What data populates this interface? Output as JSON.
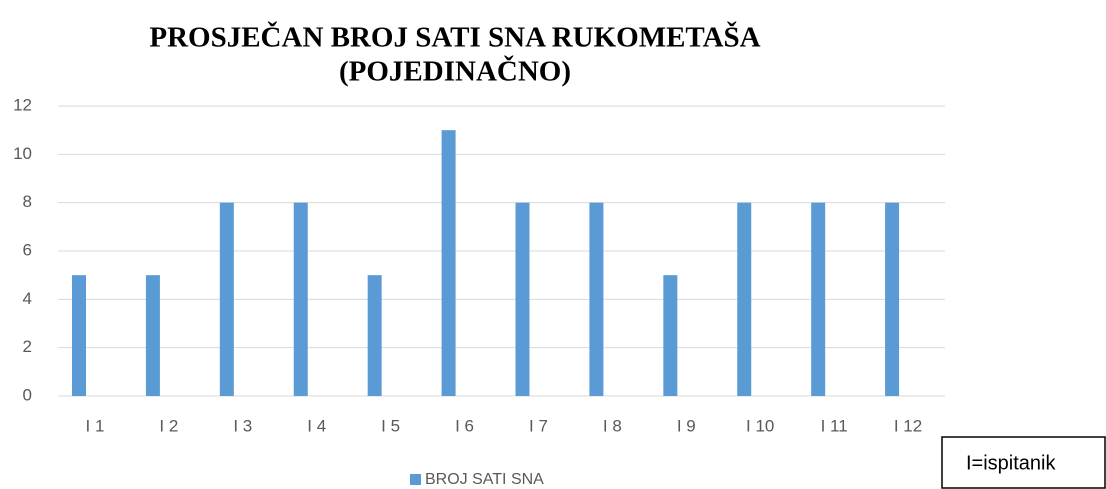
{
  "chart_data": {
    "type": "bar",
    "title": [
      "PROSJEČAN BROJ SATI SNA RUKOMETAŠA",
      "(POJEDINAČNO)"
    ],
    "categories": [
      "I 1",
      "I 2",
      "I 3",
      "I 4",
      "I 5",
      "I 6",
      "I 7",
      "I 8",
      "I 9",
      "I 10",
      "I 11",
      "I 12"
    ],
    "series": [
      {
        "name": "BROJ SATI SNA",
        "color": "#5b9bd5",
        "values": [
          5,
          5,
          8,
          8,
          5,
          11,
          8,
          8,
          5,
          8,
          8,
          8
        ]
      }
    ],
    "ylim": [
      0,
      12
    ],
    "yticks": [
      0,
      2,
      4,
      6,
      8,
      10,
      12
    ],
    "grid": true,
    "legend": "bottom",
    "annotation": "I=ispitanik"
  }
}
